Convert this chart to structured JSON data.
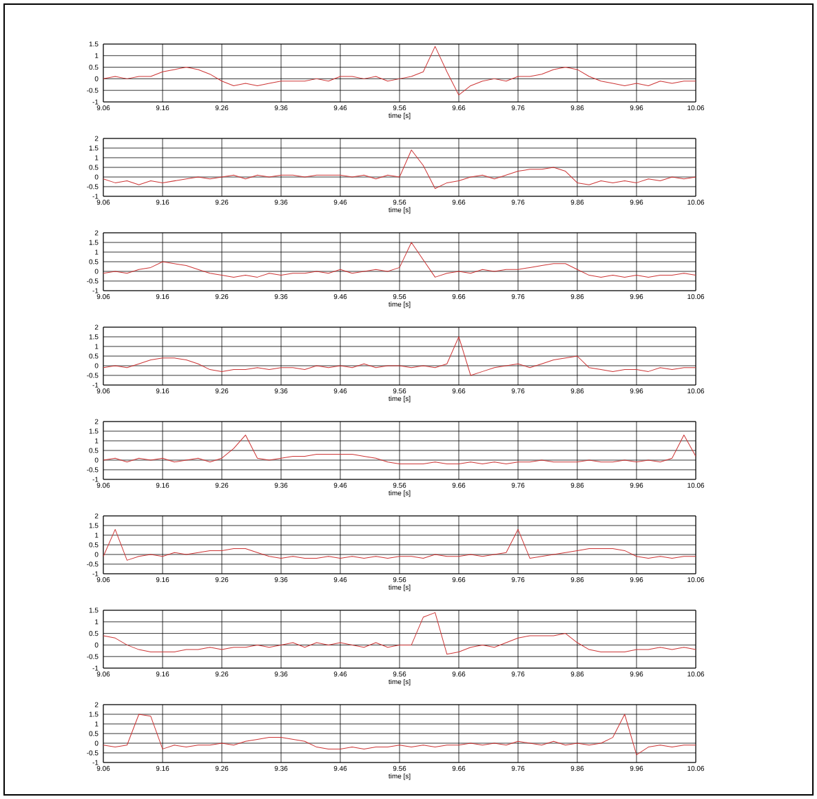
{
  "chart_data": [
    {
      "type": "line",
      "xlabel": "time [s]",
      "color": "#cc3333",
      "grid": true,
      "marker": "none",
      "xlim": [
        9.06,
        10.06
      ],
      "ylim": [
        -1,
        1.5
      ],
      "xticks": [
        9.06,
        9.16,
        9.26,
        9.36,
        9.46,
        9.56,
        9.66,
        9.76,
        9.86,
        9.96,
        10.06
      ],
      "yticks": [
        -1,
        -0.5,
        0,
        0.5,
        1,
        1.5
      ],
      "x": [
        9.06,
        9.08,
        9.1,
        9.12,
        9.14,
        9.16,
        9.18,
        9.2,
        9.22,
        9.24,
        9.26,
        9.28,
        9.3,
        9.32,
        9.34,
        9.36,
        9.38,
        9.4,
        9.42,
        9.44,
        9.46,
        9.48,
        9.5,
        9.52,
        9.54,
        9.56,
        9.58,
        9.6,
        9.62,
        9.64,
        9.66,
        9.68,
        9.7,
        9.72,
        9.74,
        9.76,
        9.78,
        9.8,
        9.82,
        9.84,
        9.86,
        9.88,
        9.9,
        9.92,
        9.94,
        9.96,
        9.98,
        10.0,
        10.02,
        10.04,
        10.06
      ],
      "values": [
        0,
        0.1,
        0,
        0.1,
        0.1,
        0.3,
        0.4,
        0.5,
        0.4,
        0.2,
        -0.1,
        -0.3,
        -0.2,
        -0.3,
        -0.2,
        -0.1,
        -0.1,
        -0.1,
        0,
        -0.1,
        0.1,
        0.1,
        0,
        0.1,
        -0.1,
        0,
        0.1,
        0.3,
        1.4,
        0.3,
        -0.7,
        -0.3,
        -0.1,
        0,
        -0.1,
        0.1,
        0.1,
        0.2,
        0.4,
        0.5,
        0.4,
        0.1,
        -0.1,
        -0.2,
        -0.3,
        -0.2,
        -0.3,
        -0.1,
        -0.2,
        -0.1,
        -0.1
      ]
    },
    {
      "type": "line",
      "xlabel": "time [s]",
      "color": "#cc3333",
      "grid": true,
      "marker": "none",
      "xlim": [
        9.06,
        10.06
      ],
      "ylim": [
        -1,
        2
      ],
      "xticks": [
        9.06,
        9.16,
        9.26,
        9.36,
        9.46,
        9.56,
        9.66,
        9.76,
        9.86,
        9.96,
        10.06
      ],
      "yticks": [
        -1,
        -0.5,
        0,
        0.5,
        1,
        1.5,
        2
      ],
      "x": [
        9.06,
        9.08,
        9.1,
        9.12,
        9.14,
        9.16,
        9.18,
        9.2,
        9.22,
        9.24,
        9.26,
        9.28,
        9.3,
        9.32,
        9.34,
        9.36,
        9.38,
        9.4,
        9.42,
        9.44,
        9.46,
        9.48,
        9.5,
        9.52,
        9.54,
        9.56,
        9.58,
        9.6,
        9.62,
        9.64,
        9.66,
        9.68,
        9.7,
        9.72,
        9.74,
        9.76,
        9.78,
        9.8,
        9.82,
        9.84,
        9.86,
        9.88,
        9.9,
        9.92,
        9.94,
        9.96,
        9.98,
        10.0,
        10.02,
        10.04,
        10.06
      ],
      "values": [
        -0.1,
        -0.3,
        -0.2,
        -0.4,
        -0.2,
        -0.3,
        -0.2,
        -0.1,
        0,
        -0.1,
        0,
        0.1,
        -0.1,
        0.1,
        0,
        0.1,
        0.1,
        0,
        0.1,
        0.1,
        0.1,
        0,
        0.1,
        -0.1,
        0.1,
        0,
        1.4,
        0.6,
        -0.6,
        -0.3,
        -0.2,
        0,
        0.1,
        -0.1,
        0.1,
        0.3,
        0.4,
        0.4,
        0.5,
        0.3,
        -0.3,
        -0.4,
        -0.2,
        -0.3,
        -0.2,
        -0.3,
        -0.1,
        -0.2,
        0,
        -0.1,
        0
      ]
    },
    {
      "type": "line",
      "xlabel": "time [s]",
      "color": "#cc3333",
      "grid": true,
      "marker": "none",
      "xlim": [
        9.06,
        10.06
      ],
      "ylim": [
        -1,
        2
      ],
      "xticks": [
        9.06,
        9.16,
        9.26,
        9.36,
        9.46,
        9.56,
        9.66,
        9.76,
        9.86,
        9.96,
        10.06
      ],
      "yticks": [
        -1,
        -0.5,
        0,
        0.5,
        1,
        1.5,
        2
      ],
      "x": [
        9.06,
        9.08,
        9.1,
        9.12,
        9.14,
        9.16,
        9.18,
        9.2,
        9.22,
        9.24,
        9.26,
        9.28,
        9.3,
        9.32,
        9.34,
        9.36,
        9.38,
        9.4,
        9.42,
        9.44,
        9.46,
        9.48,
        9.5,
        9.52,
        9.54,
        9.56,
        9.58,
        9.6,
        9.62,
        9.64,
        9.66,
        9.68,
        9.7,
        9.72,
        9.74,
        9.76,
        9.78,
        9.8,
        9.82,
        9.84,
        9.86,
        9.88,
        9.9,
        9.92,
        9.94,
        9.96,
        9.98,
        10.0,
        10.02,
        10.04,
        10.06
      ],
      "values": [
        -0.1,
        0,
        -0.1,
        0.1,
        0.2,
        0.5,
        0.4,
        0.3,
        0.1,
        -0.1,
        -0.2,
        -0.3,
        -0.2,
        -0.3,
        -0.1,
        -0.2,
        -0.1,
        -0.1,
        0,
        -0.1,
        0.1,
        -0.1,
        0,
        0.1,
        0,
        0.2,
        1.5,
        0.6,
        -0.3,
        -0.1,
        0,
        -0.1,
        0.1,
        0,
        0.1,
        0.1,
        0.2,
        0.3,
        0.4,
        0.4,
        0.1,
        -0.2,
        -0.3,
        -0.2,
        -0.3,
        -0.2,
        -0.3,
        -0.2,
        -0.2,
        -0.1,
        -0.2
      ]
    },
    {
      "type": "line",
      "xlabel": "time [s]",
      "color": "#cc3333",
      "grid": true,
      "marker": "none",
      "xlim": [
        9.06,
        10.06
      ],
      "ylim": [
        -1,
        2
      ],
      "xticks": [
        9.06,
        9.16,
        9.26,
        9.36,
        9.46,
        9.56,
        9.66,
        9.76,
        9.86,
        9.96,
        10.06
      ],
      "yticks": [
        -1,
        -0.5,
        0,
        0.5,
        1,
        1.5,
        2
      ],
      "x": [
        9.06,
        9.08,
        9.1,
        9.12,
        9.14,
        9.16,
        9.18,
        9.2,
        9.22,
        9.24,
        9.26,
        9.28,
        9.3,
        9.32,
        9.34,
        9.36,
        9.38,
        9.4,
        9.42,
        9.44,
        9.46,
        9.48,
        9.5,
        9.52,
        9.54,
        9.56,
        9.58,
        9.6,
        9.62,
        9.64,
        9.66,
        9.68,
        9.7,
        9.72,
        9.74,
        9.76,
        9.78,
        9.8,
        9.82,
        9.84,
        9.86,
        9.88,
        9.9,
        9.92,
        9.94,
        9.96,
        9.98,
        10.0,
        10.02,
        10.04,
        10.06
      ],
      "values": [
        -0.1,
        0,
        -0.1,
        0.1,
        0.3,
        0.4,
        0.4,
        0.3,
        0.1,
        -0.2,
        -0.3,
        -0.2,
        -0.2,
        -0.1,
        -0.2,
        -0.1,
        -0.1,
        -0.2,
        0,
        -0.1,
        0,
        -0.1,
        0.1,
        -0.1,
        0,
        0,
        -0.1,
        0,
        -0.1,
        0.1,
        1.5,
        -0.5,
        -0.3,
        -0.1,
        0,
        0.1,
        -0.1,
        0.1,
        0.3,
        0.4,
        0.5,
        -0.1,
        -0.2,
        -0.3,
        -0.2,
        -0.2,
        -0.3,
        -0.1,
        -0.2,
        -0.1,
        -0.1
      ]
    },
    {
      "type": "line",
      "xlabel": "time [s]",
      "color": "#cc3333",
      "grid": true,
      "marker": "none",
      "xlim": [
        9.06,
        10.06
      ],
      "ylim": [
        -1,
        2
      ],
      "xticks": [
        9.06,
        9.16,
        9.26,
        9.36,
        9.46,
        9.56,
        9.66,
        9.76,
        9.86,
        9.96,
        10.06
      ],
      "yticks": [
        -1,
        -0.5,
        0,
        0.5,
        1,
        1.5,
        2
      ],
      "x": [
        9.06,
        9.08,
        9.1,
        9.12,
        9.14,
        9.16,
        9.18,
        9.2,
        9.22,
        9.24,
        9.26,
        9.28,
        9.3,
        9.32,
        9.34,
        9.36,
        9.38,
        9.4,
        9.42,
        9.44,
        9.46,
        9.48,
        9.5,
        9.52,
        9.54,
        9.56,
        9.58,
        9.6,
        9.62,
        9.64,
        9.66,
        9.68,
        9.7,
        9.72,
        9.74,
        9.76,
        9.78,
        9.8,
        9.82,
        9.84,
        9.86,
        9.88,
        9.9,
        9.92,
        9.94,
        9.96,
        9.98,
        10.0,
        10.02,
        10.04,
        10.06
      ],
      "values": [
        0,
        0.1,
        -0.1,
        0.1,
        0,
        0.1,
        -0.1,
        0,
        0.1,
        -0.1,
        0.1,
        0.6,
        1.3,
        0.1,
        0,
        0.1,
        0.2,
        0.2,
        0.3,
        0.3,
        0.3,
        0.3,
        0.2,
        0.1,
        -0.1,
        -0.2,
        -0.2,
        -0.2,
        -0.1,
        -0.2,
        -0.2,
        -0.1,
        -0.2,
        -0.1,
        -0.2,
        -0.1,
        -0.1,
        0,
        -0.1,
        -0.1,
        -0.1,
        0,
        -0.1,
        -0.1,
        0,
        -0.1,
        0,
        -0.1,
        0.1,
        1.3,
        0.2
      ]
    },
    {
      "type": "line",
      "xlabel": "time [s]",
      "color": "#cc3333",
      "grid": true,
      "marker": "none",
      "xlim": [
        9.06,
        10.06
      ],
      "ylim": [
        -1,
        2
      ],
      "xticks": [
        9.06,
        9.16,
        9.26,
        9.36,
        9.46,
        9.56,
        9.66,
        9.76,
        9.86,
        9.96,
        10.06
      ],
      "yticks": [
        -1,
        -0.5,
        0,
        0.5,
        1,
        1.5,
        2
      ],
      "x": [
        9.06,
        9.08,
        9.1,
        9.12,
        9.14,
        9.16,
        9.18,
        9.2,
        9.22,
        9.24,
        9.26,
        9.28,
        9.3,
        9.32,
        9.34,
        9.36,
        9.38,
        9.4,
        9.42,
        9.44,
        9.46,
        9.48,
        9.5,
        9.52,
        9.54,
        9.56,
        9.58,
        9.6,
        9.62,
        9.64,
        9.66,
        9.68,
        9.7,
        9.72,
        9.74,
        9.76,
        9.78,
        9.8,
        9.82,
        9.84,
        9.86,
        9.88,
        9.9,
        9.92,
        9.94,
        9.96,
        9.98,
        10.0,
        10.02,
        10.04,
        10.06
      ],
      "values": [
        -0.1,
        1.3,
        -0.3,
        -0.1,
        0,
        -0.1,
        0.1,
        0,
        0.1,
        0.2,
        0.2,
        0.3,
        0.3,
        0.1,
        -0.1,
        -0.2,
        -0.1,
        -0.2,
        -0.2,
        -0.1,
        -0.2,
        -0.1,
        -0.2,
        -0.1,
        -0.2,
        -0.1,
        -0.1,
        -0.2,
        0,
        -0.1,
        -0.1,
        0,
        -0.1,
        0,
        0.1,
        1.3,
        -0.2,
        -0.1,
        0,
        0.1,
        0.2,
        0.3,
        0.3,
        0.3,
        0.2,
        -0.1,
        -0.2,
        -0.1,
        -0.2,
        -0.1,
        -0.1
      ]
    },
    {
      "type": "line",
      "xlabel": "time [s]",
      "color": "#cc3333",
      "grid": true,
      "marker": "none",
      "xlim": [
        9.06,
        10.06
      ],
      "ylim": [
        -1,
        1.5
      ],
      "xticks": [
        9.06,
        9.16,
        9.26,
        9.36,
        9.46,
        9.56,
        9.66,
        9.76,
        9.86,
        9.96,
        10.06
      ],
      "yticks": [
        -1,
        -0.5,
        0,
        0.5,
        1,
        1.5
      ],
      "x": [
        9.06,
        9.08,
        9.1,
        9.12,
        9.14,
        9.16,
        9.18,
        9.2,
        9.22,
        9.24,
        9.26,
        9.28,
        9.3,
        9.32,
        9.34,
        9.36,
        9.38,
        9.4,
        9.42,
        9.44,
        9.46,
        9.48,
        9.5,
        9.52,
        9.54,
        9.56,
        9.58,
        9.6,
        9.62,
        9.64,
        9.66,
        9.68,
        9.7,
        9.72,
        9.74,
        9.76,
        9.78,
        9.8,
        9.82,
        9.84,
        9.86,
        9.88,
        9.9,
        9.92,
        9.94,
        9.96,
        9.98,
        10.0,
        10.02,
        10.04,
        10.06
      ],
      "values": [
        0.4,
        0.3,
        0,
        -0.2,
        -0.3,
        -0.3,
        -0.3,
        -0.2,
        -0.2,
        -0.1,
        -0.2,
        -0.1,
        -0.1,
        0,
        -0.1,
        0,
        0.1,
        -0.1,
        0.1,
        0,
        0.1,
        0,
        -0.1,
        0.1,
        -0.1,
        0,
        0,
        1.2,
        1.4,
        -0.4,
        -0.3,
        -0.1,
        0,
        -0.1,
        0.1,
        0.3,
        0.4,
        0.4,
        0.4,
        0.5,
        0.1,
        -0.2,
        -0.3,
        -0.3,
        -0.3,
        -0.2,
        -0.2,
        -0.1,
        -0.2,
        -0.1,
        -0.2
      ]
    },
    {
      "type": "line",
      "xlabel": "time [s]",
      "color": "#cc3333",
      "grid": true,
      "marker": "none",
      "xlim": [
        9.06,
        10.06
      ],
      "ylim": [
        -1,
        2
      ],
      "xticks": [
        9.06,
        9.16,
        9.26,
        9.36,
        9.46,
        9.56,
        9.66,
        9.76,
        9.86,
        9.96,
        10.06
      ],
      "yticks": [
        -1,
        -0.5,
        0,
        0.5,
        1,
        1.5,
        2
      ],
      "x": [
        9.06,
        9.08,
        9.1,
        9.12,
        9.14,
        9.16,
        9.18,
        9.2,
        9.22,
        9.24,
        9.26,
        9.28,
        9.3,
        9.32,
        9.34,
        9.36,
        9.38,
        9.4,
        9.42,
        9.44,
        9.46,
        9.48,
        9.5,
        9.52,
        9.54,
        9.56,
        9.58,
        9.6,
        9.62,
        9.64,
        9.66,
        9.68,
        9.7,
        9.72,
        9.74,
        9.76,
        9.78,
        9.8,
        9.82,
        9.84,
        9.86,
        9.88,
        9.9,
        9.92,
        9.94,
        9.96,
        9.98,
        10.0,
        10.02,
        10.04,
        10.06
      ],
      "values": [
        -0.1,
        -0.2,
        -0.1,
        1.5,
        1.4,
        -0.3,
        -0.1,
        -0.2,
        -0.1,
        -0.1,
        0,
        -0.1,
        0.1,
        0.2,
        0.3,
        0.3,
        0.2,
        0.1,
        -0.2,
        -0.3,
        -0.3,
        -0.2,
        -0.3,
        -0.2,
        -0.2,
        -0.1,
        -0.2,
        -0.1,
        -0.2,
        -0.1,
        -0.1,
        0,
        -0.1,
        0,
        -0.1,
        0.1,
        0,
        -0.1,
        0.1,
        -0.1,
        0,
        -0.1,
        0,
        0.3,
        1.5,
        -0.6,
        -0.2,
        -0.1,
        -0.2,
        -0.1,
        -0.1
      ]
    }
  ]
}
